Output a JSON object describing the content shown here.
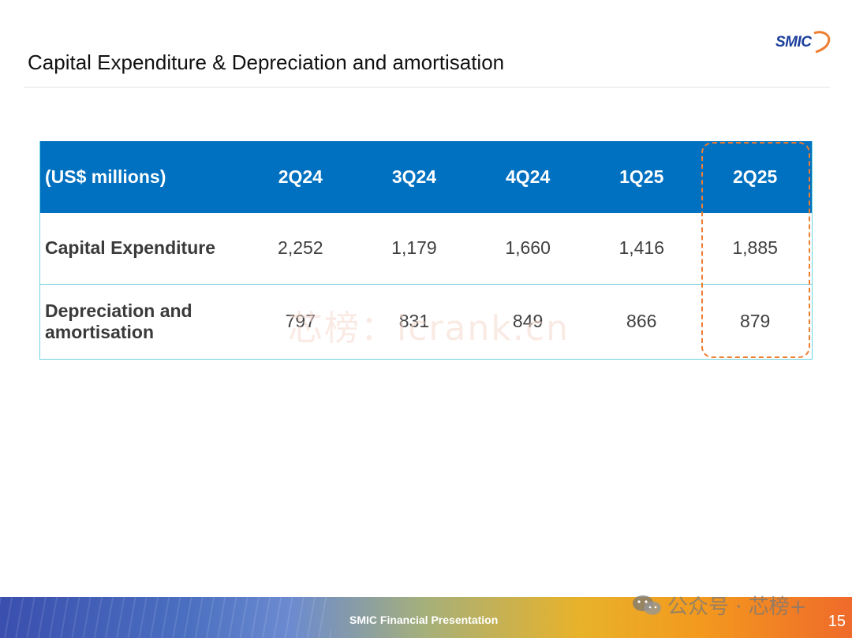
{
  "title": "Capital Expenditure & Depreciation and amortisation",
  "logo_text": "SMIC",
  "table": {
    "header": {
      "unit": "(US$ millions)",
      "quarters": [
        "2Q24",
        "3Q24",
        "4Q24",
        "1Q25",
        "2Q25"
      ]
    },
    "rows": [
      {
        "label": "Capital Expenditure",
        "values": [
          "2,252",
          "1,179",
          "1,660",
          "1,416",
          "1,885"
        ]
      },
      {
        "label": "Depreciation and amortisation",
        "values": [
          "797",
          "831",
          "849",
          "866",
          "879"
        ]
      }
    ],
    "highlighted_column": "2Q25"
  },
  "watermark_center": "芯榜：icrank.cn",
  "footer": {
    "label": "SMIC Financial Presentation",
    "page_number": "15",
    "wechat_watermark": "公众号 · 芯榜+"
  },
  "colors": {
    "header_bg": "#0070c0",
    "row_border": "#6fd3e0",
    "highlight": "#ee7d31",
    "logo": "#1c3f9c"
  }
}
